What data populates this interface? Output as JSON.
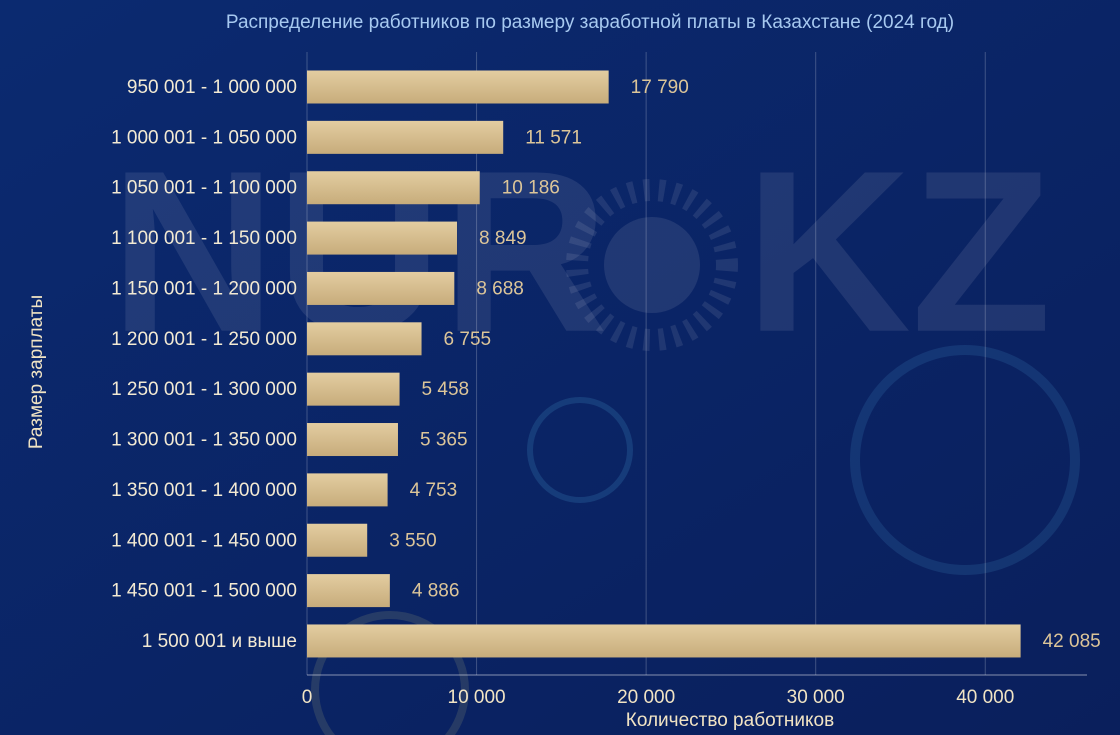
{
  "watermark": [
    "NUR",
    "KZ"
  ],
  "chart_data": {
    "type": "bar",
    "orientation": "horizontal",
    "title": "Распределение работников по размеру заработной платы в Казахстане (2024 год)",
    "x_label": "Количество работников",
    "y_label": "Размер зарплаты",
    "categories": [
      "950 001 - 1 000 000",
      "1 000 001 - 1 050 000",
      "1 050 001 - 1 100 000",
      "1 100 001 - 1 150 000",
      "1 150 001 - 1 200 000",
      "1 200 001 - 1 250 000",
      "1 250 001 - 1 300 000",
      "1 300 001 - 1 350 000",
      "1 350 001 - 1 400 000",
      "1 400 001 - 1 450 000",
      "1 450 001 - 1 500 000",
      "1 500 001 и выше"
    ],
    "values": [
      17790,
      11571,
      10186,
      8849,
      8688,
      6755,
      5458,
      5365,
      4753,
      3550,
      4886,
      42085
    ],
    "value_labels": [
      "17 790",
      "11 571",
      "10 186",
      "8 849",
      "8 688",
      "6 755",
      "5 458",
      "5 365",
      "4 753",
      "3 550",
      "4 886",
      "42 085"
    ],
    "color": "#d4b98a",
    "xlim": [
      0,
      46000
    ],
    "xticks": [
      0,
      {
        "value": 10000,
        "label": "10 000"
      },
      {
        "value": 20000,
        "label": "20 000"
      },
      {
        "value": 30000,
        "label": "30 000"
      },
      {
        "value": 40000,
        "label": "40 000"
      }
    ],
    "grid": true
  }
}
